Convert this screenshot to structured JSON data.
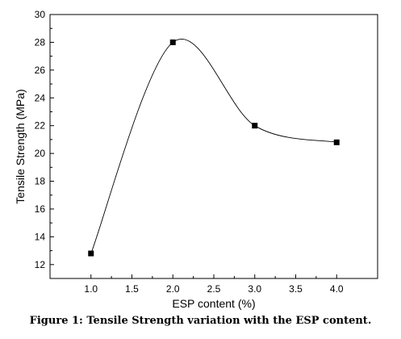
{
  "chart_data": {
    "type": "line",
    "xlabel": "ESP content (%)",
    "ylabel": "Tensile Strength (MPa)",
    "xlim": [
      0.5,
      4.5
    ],
    "ylim": [
      11,
      30
    ],
    "xticks": [
      "1.0",
      "1.5",
      "2.0",
      "2.5",
      "3.0",
      "3.5",
      "4.0"
    ],
    "yticks": [
      "12",
      "14",
      "16",
      "18",
      "20",
      "22",
      "24",
      "26",
      "28",
      "30"
    ],
    "x": [
      1.0,
      2.0,
      3.0,
      4.0
    ],
    "series": [
      {
        "values": [
          12.8,
          28.0,
          22.0,
          20.8
        ]
      }
    ],
    "marker": "square",
    "line": "smooth",
    "grid": false
  },
  "caption": "Figure 1: Tensile Strength variation with the ESP content."
}
